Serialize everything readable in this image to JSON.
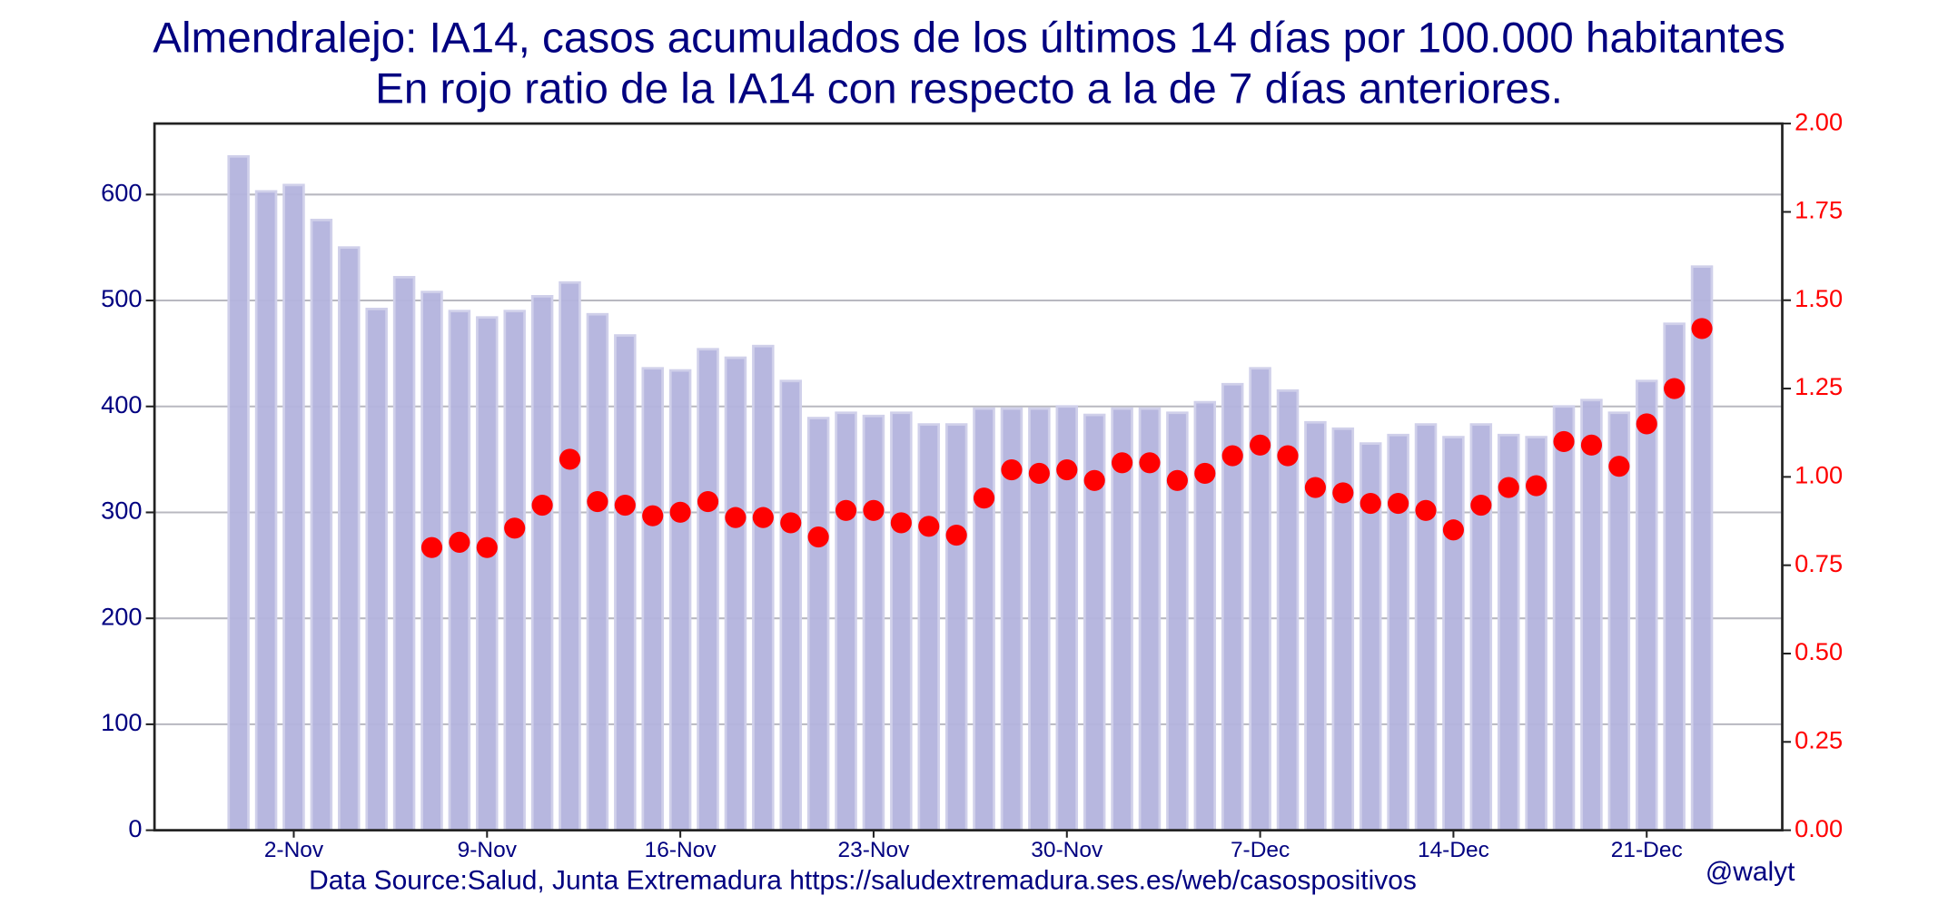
{
  "chart_data": {
    "type": "bar",
    "title": "Almendralejo: IA14, casos acumulados de los últimos 14 días por 100.000 habitantes",
    "subtitle": "En rojo ratio de la IA14 con respecto a la de 7 días anteriores.",
    "source": "Data Source:Salud, Junta Extremadura https://saludextremadura.ses.es/web/casospositivos",
    "credit": "@walyt",
    "categories": [
      null,
      null,
      "2-Nov",
      null,
      null,
      null,
      null,
      null,
      null,
      "9-Nov",
      null,
      null,
      null,
      null,
      null,
      null,
      "16-Nov",
      null,
      null,
      null,
      null,
      null,
      null,
      "23-Nov",
      null,
      null,
      null,
      null,
      null,
      null,
      "30-Nov",
      null,
      null,
      null,
      null,
      null,
      null,
      "7-Dec",
      null,
      null,
      null,
      null,
      null,
      null,
      "14-Dec",
      null,
      null,
      null,
      null,
      null,
      null,
      "21-Dec",
      null,
      null
    ],
    "series": [
      {
        "name": "IA14",
        "color": "#b3b3dd",
        "type": "bar",
        "values": [
          636,
          603,
          609,
          576,
          550,
          492,
          522,
          508,
          490,
          484,
          490,
          504,
          517,
          487,
          467,
          436,
          434,
          454,
          446,
          457,
          424,
          389,
          394,
          391,
          394,
          383,
          383,
          398,
          398,
          398,
          400,
          392,
          398,
          398,
          394,
          404,
          421,
          436,
          415,
          385,
          379,
          365,
          373,
          383,
          371,
          383,
          373,
          371,
          400,
          406,
          394,
          424,
          478,
          532
        ]
      },
      {
        "name": "ratio",
        "color": "#ff0000",
        "type": "scatter",
        "axis": "y2",
        "values": [
          null,
          null,
          null,
          null,
          null,
          null,
          null,
          0.8,
          0.815,
          0.8,
          0.855,
          0.92,
          1.05,
          0.93,
          0.92,
          0.89,
          0.9,
          0.93,
          0.885,
          0.885,
          0.87,
          0.83,
          0.905,
          0.905,
          0.87,
          0.86,
          0.835,
          0.94,
          1.02,
          1.01,
          1.02,
          0.99,
          1.04,
          1.04,
          0.99,
          1.01,
          1.06,
          1.09,
          1.06,
          0.97,
          0.955,
          0.925,
          0.925,
          0.905,
          0.85,
          0.92,
          0.97,
          0.975,
          1.1,
          1.09,
          1.03,
          1.15,
          1.25,
          1.42
        ]
      }
    ],
    "ylim": [
      0,
      667
    ],
    "yticks": [
      0,
      100,
      200,
      300,
      400,
      500,
      600
    ],
    "y2lim": [
      0,
      2
    ],
    "y2ticks": [
      {
        "value": 0,
        "label": "0.00"
      },
      {
        "value": 0.25,
        "label": "0.25"
      },
      {
        "value": 0.5,
        "label": "0.50"
      },
      {
        "value": 0.75,
        "label": "0.75"
      },
      {
        "value": 1,
        "label": "1.00"
      },
      {
        "value": 1.25,
        "label": "1.25"
      },
      {
        "value": 1.5,
        "label": "1.50"
      },
      {
        "value": 1.75,
        "label": "1.75"
      },
      {
        "value": 2,
        "label": "2.00"
      }
    ],
    "grid": true
  }
}
